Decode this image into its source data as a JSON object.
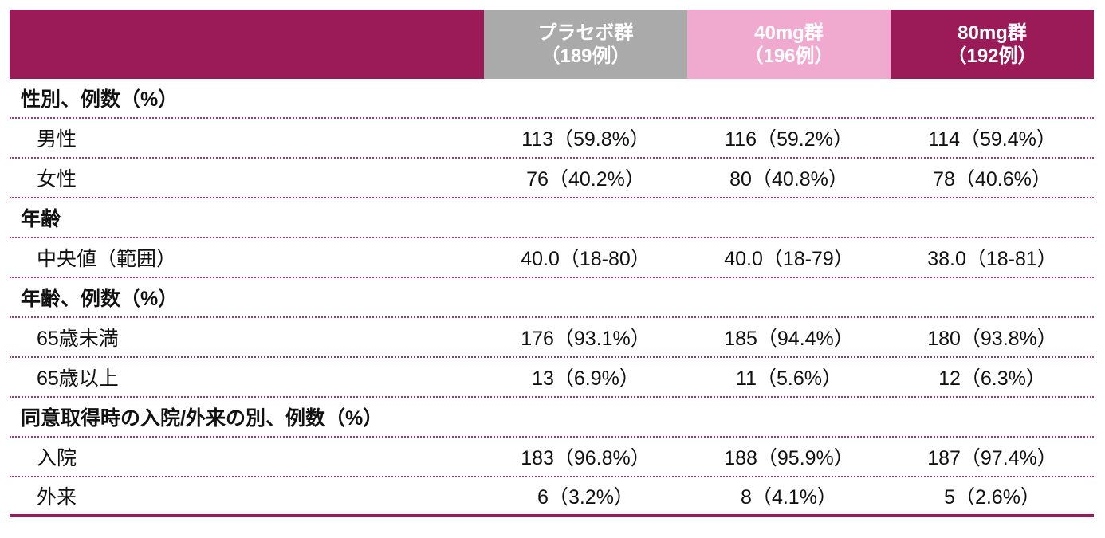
{
  "header": {
    "columns": [
      {
        "name": "プラセボ群",
        "n": "（189例）",
        "color": "#aaaaaa"
      },
      {
        "name": "40mg群",
        "n": "（196例）",
        "color": "#f0aacf"
      },
      {
        "name": "80mg群",
        "n": "（192例）",
        "color": "#9b1a58"
      }
    ]
  },
  "rows": [
    {
      "type": "section",
      "label": "性別、例数（%）"
    },
    {
      "type": "data",
      "label": "男性",
      "values": [
        "113（59.8%）",
        "116（59.2%）",
        "114（59.4%）"
      ]
    },
    {
      "type": "data",
      "label": "女性",
      "values": [
        "76（40.2%）",
        "80（40.8%）",
        "78（40.6%）"
      ]
    },
    {
      "type": "section",
      "label": "年齢"
    },
    {
      "type": "data",
      "label": "中央値（範囲）",
      "values": [
        "40.0（18-80）",
        "40.0（18-79）",
        "38.0（18-81）"
      ]
    },
    {
      "type": "section",
      "label": "年齢、例数（%）"
    },
    {
      "type": "data",
      "label": "65歳未満",
      "values": [
        "176（93.1%）",
        "185（94.4%）",
        "180（93.8%）"
      ]
    },
    {
      "type": "data",
      "label": "65歳以上",
      "values": [
        "13（6.9%）",
        "11（5.6%）",
        "12（6.3%）"
      ]
    },
    {
      "type": "section",
      "label": "同意取得時の入院/外来の別、例数（%）"
    },
    {
      "type": "data",
      "label": "入院",
      "values": [
        "183（96.8%）",
        "188（95.9%）",
        "187（97.4%）"
      ]
    },
    {
      "type": "data",
      "label": "外来",
      "values": [
        "6（3.2%）",
        "8（4.1%）",
        "5（2.6%）"
      ]
    }
  ],
  "colors": {
    "accent": "#9b1a58",
    "placebo": "#aaaaaa",
    "dose40": "#f0aacf",
    "divider": "#b0306e"
  }
}
